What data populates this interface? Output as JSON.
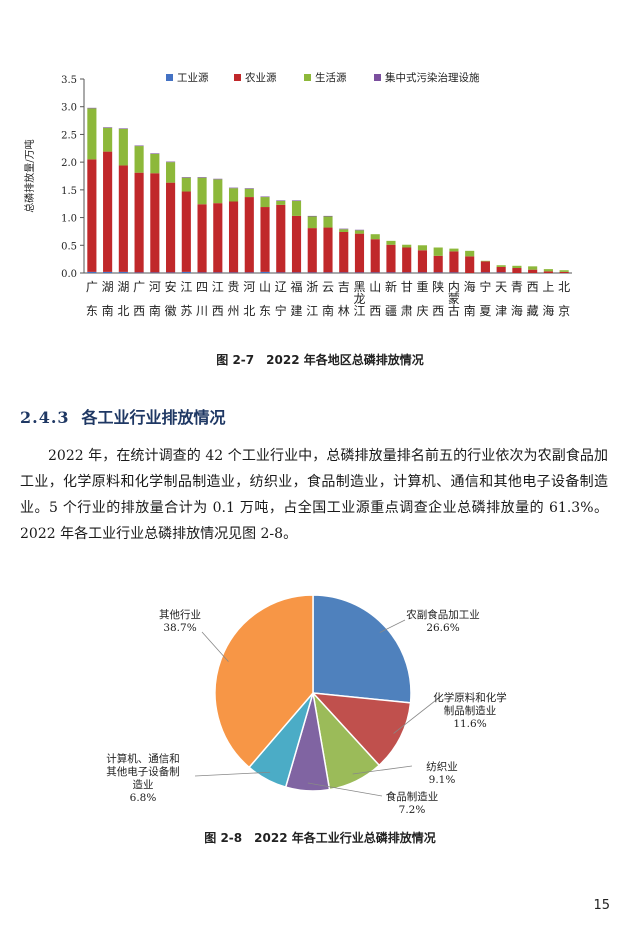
{
  "figure1": {
    "caption": "图 2-7　2022 年各地区总磷排放情况",
    "chart_data": {
      "type": "bar",
      "stacked": true,
      "ylabel": "总磷排放量/万吨",
      "ylim": [
        0,
        3.5
      ],
      "yticks": [
        "0.0",
        "0.5",
        "1.0",
        "1.5",
        "2.0",
        "2.5",
        "3.0",
        "3.5"
      ],
      "legend_position": "top",
      "grid": false,
      "categories": [
        "广东",
        "湖南",
        "湖北",
        "广西",
        "河南",
        "安徽",
        "江苏",
        "四川",
        "江西",
        "贵州",
        "河北",
        "山东",
        "辽宁",
        "福建",
        "浙江",
        "云南",
        "吉林",
        "黑龙江",
        "山西",
        "新疆",
        "甘肃",
        "重庆",
        "陕西",
        "内蒙古",
        "海南",
        "宁夏",
        "天津",
        "青海",
        "西藏",
        "上海",
        "北京"
      ],
      "series": [
        {
          "name": "工业源",
          "color": "#4472c4",
          "values": [
            0.02,
            0.02,
            0.02,
            0.01,
            0.01,
            0.01,
            0.02,
            0.01,
            0.01,
            0.01,
            0.01,
            0.02,
            0.01,
            0.01,
            0.01,
            0.01,
            0.01,
            0.01,
            0.01,
            0.01,
            0.01,
            0.01,
            0.01,
            0.01,
            0,
            0.01,
            0.01,
            0,
            0,
            0,
            0
          ]
        },
        {
          "name": "农业源",
          "color": "#c0282a",
          "values": [
            2.03,
            2.17,
            1.92,
            1.8,
            1.79,
            1.62,
            1.45,
            1.23,
            1.25,
            1.28,
            1.36,
            1.17,
            1.22,
            1.02,
            0.8,
            0.81,
            0.73,
            0.7,
            0.6,
            0.5,
            0.45,
            0.4,
            0.3,
            0.38,
            0.3,
            0.2,
            0.1,
            0.09,
            0.06,
            0.03,
            0.02
          ]
        },
        {
          "name": "生活源",
          "color": "#8db83a",
          "values": [
            0.92,
            0.43,
            0.66,
            0.48,
            0.35,
            0.37,
            0.25,
            0.48,
            0.43,
            0.24,
            0.15,
            0.18,
            0.07,
            0.27,
            0.21,
            0.2,
            0.05,
            0.06,
            0.09,
            0.07,
            0.05,
            0.09,
            0.15,
            0.05,
            0.1,
            0.01,
            0.03,
            0.04,
            0.06,
            0.04,
            0.03
          ]
        },
        {
          "name": "集中式污染治理设施",
          "color": "#7b4f9e",
          "values": [
            0.01,
            0.01,
            0.01,
            0.01,
            0.01,
            0.01,
            0.01,
            0.01,
            0.01,
            0.01,
            0.01,
            0.01,
            0.01,
            0.01,
            0.01,
            0.01,
            0.01,
            0.01,
            0,
            0,
            0,
            0,
            0,
            0,
            0,
            0,
            0,
            0,
            0,
            0,
            0
          ]
        }
      ]
    }
  },
  "section": {
    "number": "2.4.3",
    "title": "各工业行业排放情况",
    "paragraph": "2022 年，在统计调查的 42 个工业行业中，总磷排放量排名前五的行业依次为农副食品加工业，化学原料和化学制品制造业，纺织业，食品制造业，计算机、通信和其他电子设备制造业。5 个行业的排放量合计为 0.1 万吨，占全国工业源重点调查企业总磷排放量的 61.3%。2022 年各工业行业总磷排放情况见图 2-8。"
  },
  "figure2": {
    "caption": "图 2-8　2022 年各工业行业总磷排放情况",
    "chart_data": {
      "type": "pie",
      "slices": [
        {
          "label": "农副食品加工业",
          "label_lines": [
            "农副食品加工业"
          ],
          "pct_text": "26.6%",
          "value": 26.6,
          "color": "#4f81bd"
        },
        {
          "label": "化学原料和化学制品制造业",
          "label_lines": [
            "化学原料和化学",
            "制品制造业"
          ],
          "pct_text": "11.6%",
          "value": 11.6,
          "color": "#c0504d"
        },
        {
          "label": "纺织业",
          "label_lines": [
            "纺织业"
          ],
          "pct_text": "9.1%",
          "value": 9.1,
          "color": "#9bbb59"
        },
        {
          "label": "食品制造业",
          "label_lines": [
            "食品制造业"
          ],
          "pct_text": "7.2%",
          "value": 7.2,
          "color": "#8064a2"
        },
        {
          "label": "计算机、通信和其他电子设备制造业",
          "label_lines": [
            "计算机、通信和",
            "其他电子设备制",
            "造业"
          ],
          "pct_text": "6.8%",
          "value": 6.8,
          "color": "#4bacc6"
        },
        {
          "label": "其他行业",
          "label_lines": [
            "其他行业"
          ],
          "pct_text": "38.7%",
          "value": 38.7,
          "color": "#f79646"
        }
      ]
    }
  },
  "page_number": "15"
}
